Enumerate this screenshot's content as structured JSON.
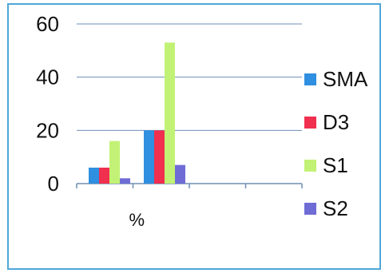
{
  "chart_data": {
    "type": "bar",
    "categories": [
      "%",
      "",
      "",
      ""
    ],
    "series": [
      {
        "name": "SMA",
        "values": [
          6,
          20,
          null,
          null
        ]
      },
      {
        "name": "D3",
        "values": [
          6,
          20,
          null,
          null
        ]
      },
      {
        "name": "S1",
        "values": [
          16,
          53,
          null,
          null
        ]
      },
      {
        "name": "S2",
        "values": [
          2,
          7,
          null,
          null
        ]
      }
    ],
    "ylim": [
      0,
      60
    ],
    "yticks": [
      "0",
      "20",
      "40",
      "60"
    ],
    "grid": true,
    "legend_position": "right",
    "colors": {
      "SMA": "#2f8fe0",
      "D3": "#f0304e",
      "S1": "#c2f275",
      "S2": "#6f6cd6",
      "grid": "#6e8fb4",
      "frame": "#4fa7d6"
    }
  }
}
